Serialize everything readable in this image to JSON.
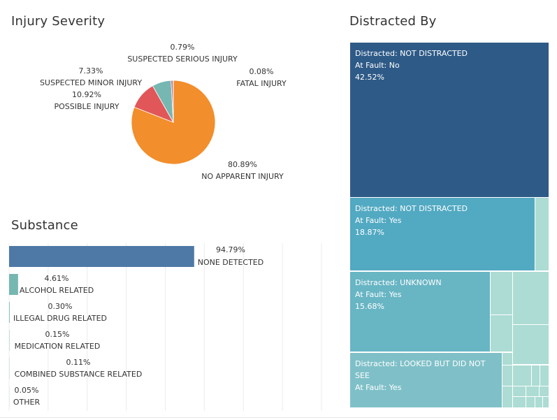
{
  "injury": {
    "title": "Injury Severity",
    "colors": [
      "#f28e2b",
      "#e15759",
      "#76b7b2",
      "#c76a8c",
      "#4e79a7"
    ]
  },
  "substance": {
    "title": "Substance",
    "colors": [
      "#4e79a7",
      "#76b7b2"
    ]
  },
  "distracted": {
    "title": "Distracted By",
    "tiles": [
      {
        "line1": "Distracted: NOT DISTRACTED",
        "line2": "At Fault: No",
        "line3": "42.52%"
      },
      {
        "line1": "Distracted: NOT DISTRACTED",
        "line2": "At Fault: Yes",
        "line3": "18.87%"
      },
      {
        "line1": "Distracted: UNKNOWN",
        "line2": "At Fault: Yes",
        "line3": "15.68%"
      },
      {
        "line1": "Distracted: LOOKED BUT DID NOT SEE",
        "line2": "At Fault: Yes",
        "line3": ""
      }
    ],
    "colors": {
      "dark": "#2e5a87",
      "mid": "#52a9c2",
      "light": "#68b5c4",
      "lighter": "#7fc0c8",
      "pale": "#acdcd4"
    }
  },
  "chart_data": [
    {
      "type": "pie",
      "title": "Injury Severity",
      "categories": [
        "NO APPARENT INJURY",
        "POSSIBLE INJURY",
        "SUSPECTED MINOR INJURY",
        "SUSPECTED SERIOUS INJURY",
        "FATAL INJURY"
      ],
      "values": [
        80.89,
        10.92,
        7.33,
        0.79,
        0.08
      ],
      "labels": [
        "80.89%",
        "10.92%",
        "7.33%",
        "0.79%",
        "0.08%"
      ]
    },
    {
      "type": "bar",
      "orientation": "horizontal",
      "title": "Substance",
      "categories": [
        "NONE DETECTED",
        "ALCOHOL RELATED",
        "ILLEGAL DRUG RELATED",
        "MEDICATION RELATED",
        "COMBINED SUBSTANCE RELATED",
        "OTHER"
      ],
      "values": [
        94.79,
        4.61,
        0.3,
        0.15,
        0.11,
        0.05
      ],
      "labels": [
        "94.79%",
        "4.61%",
        "0.30%",
        "0.15%",
        "0.11%",
        "0.05%"
      ],
      "xlim": [
        0,
        160
      ],
      "grid": true
    },
    {
      "type": "treemap",
      "title": "Distracted By",
      "items": [
        {
          "distracted": "NOT DISTRACTED",
          "at_fault": "No",
          "value": 42.52
        },
        {
          "distracted": "NOT DISTRACTED",
          "at_fault": "Yes",
          "value": 18.87
        },
        {
          "distracted": "UNKNOWN",
          "at_fault": "Yes",
          "value": 15.68
        },
        {
          "distracted": "LOOKED BUT DID NOT SEE",
          "at_fault": "Yes",
          "value": null
        }
      ]
    }
  ]
}
